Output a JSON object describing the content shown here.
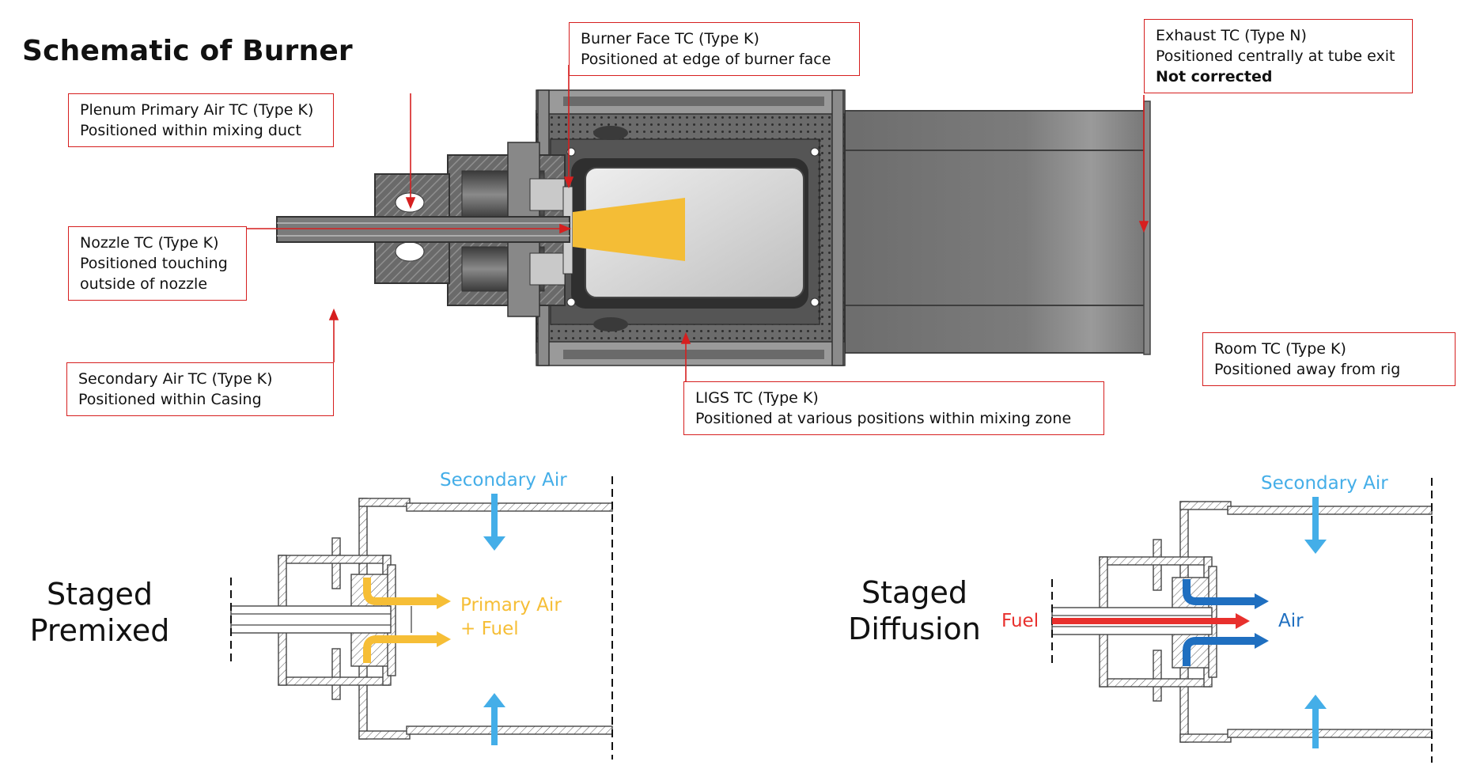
{
  "title": "Schematic of Burner",
  "callouts": {
    "plenum": {
      "line1": "Plenum Primary Air TC (Type K)",
      "line2": "Positioned within mixing duct"
    },
    "nozzle": {
      "line1": "Nozzle TC (Type K)",
      "line2": "Positioned touching",
      "line3": "outside of nozzle"
    },
    "secondary": {
      "line1": "Secondary Air TC (Type K)",
      "line2": "Positioned within Casing"
    },
    "burner_face": {
      "line1": "Burner Face TC (Type K)",
      "line2": "Positioned at edge of burner face"
    },
    "exhaust": {
      "line1": "Exhaust TC (Type N)",
      "line2": "Positioned centrally at tube exit",
      "line3": "Not corrected"
    },
    "room": {
      "line1": "Room TC (Type K)",
      "line2": "Positioned away from rig"
    },
    "ligs": {
      "line1": "LIGS TC (Type K)",
      "line2": "Positioned at various positions within mixing zone"
    }
  },
  "premixed": {
    "label_line1": "Staged",
    "label_line2": "Premixed",
    "secondary_air": "Secondary Air",
    "primary_air_line1": "Primary Air",
    "primary_air_line2": "+ Fuel"
  },
  "diffusion": {
    "label_line1": "Staged",
    "label_line2": "Diffusion",
    "secondary_air": "Secondary Air",
    "fuel": "Fuel",
    "air": "Air"
  },
  "colors": {
    "callout_border": "#d61f1f",
    "secondary_air": "#44aee8",
    "primary_air_fuel": "#f6be36",
    "fuel": "#e8302d",
    "air": "#1f6fc0",
    "flame": "#f4bd36",
    "metal_dark": "#5a5a5a",
    "metal_mid": "#7b7b7b"
  }
}
